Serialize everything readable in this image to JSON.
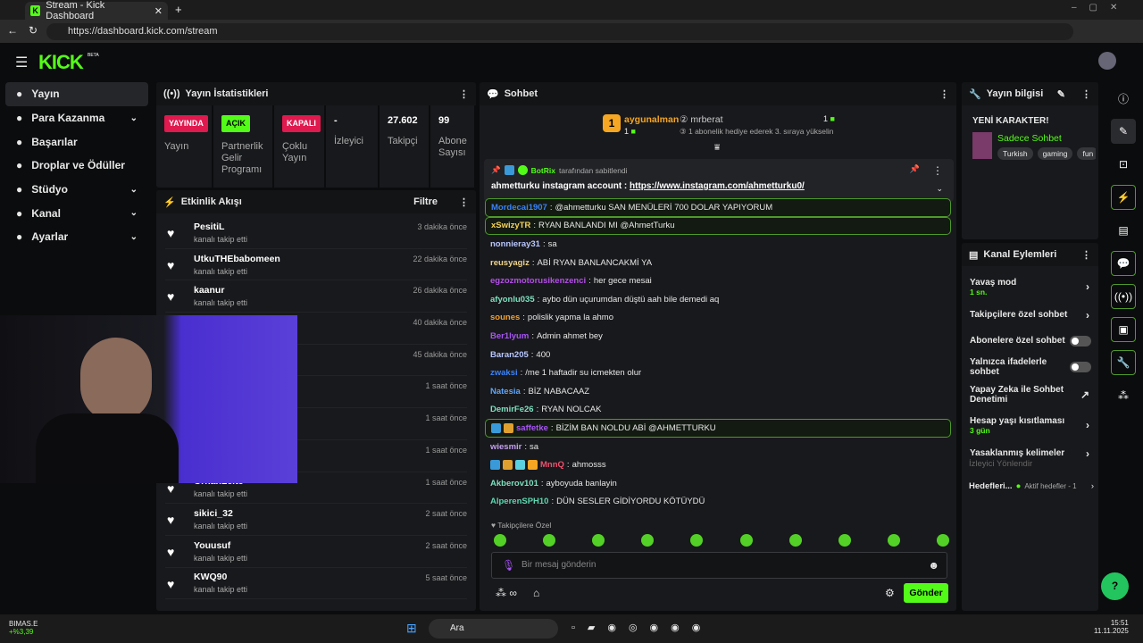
{
  "browser": {
    "tab_title": "Stream - Kick Dashboard",
    "url": "https://dashboard.kick.com/stream"
  },
  "brand": {
    "logo": "KICK",
    "beta": "BETA",
    "accent": "#53fc18"
  },
  "sidebar": {
    "items": [
      {
        "label": "Yayın",
        "icon": "broadcast-icon",
        "active": true
      },
      {
        "label": "Para Kazanma",
        "icon": "money-icon",
        "expandable": true
      },
      {
        "label": "Başarılar",
        "icon": "trophy-icon"
      },
      {
        "label": "Droplar ve Ödüller",
        "icon": "gift-icon"
      },
      {
        "label": "Stüdyo",
        "icon": "studio-icon",
        "expandable": true
      },
      {
        "label": "Kanal",
        "icon": "channel-icon",
        "expandable": true
      },
      {
        "label": "Ayarlar",
        "icon": "gear-icon",
        "expandable": true
      }
    ]
  },
  "stats": {
    "title": "Yayın İstatistikleri",
    "items": [
      {
        "badge": "YAYINDA",
        "badge_color": "#e0194e",
        "label": "Yayın"
      },
      {
        "badge": "AÇIK",
        "badge_color": "#53fc18",
        "label": "Partnerlik Gelir Programı"
      },
      {
        "badge": "KAPALI",
        "badge_color": "#e0194e",
        "label": "Çoklu Yayın"
      },
      {
        "value": "-",
        "label": "İzleyici"
      },
      {
        "value": "27.602",
        "label": "Takipçi"
      },
      {
        "value": "99",
        "label": "Abone Sayısı"
      }
    ]
  },
  "activity": {
    "title": "Etkinlik Akışı",
    "filter": "Filtre",
    "action": "kanalı takip etti",
    "events": [
      {
        "name": "PesitiL",
        "time": "3 dakika önce"
      },
      {
        "name": "UtkuTHEbabomeen",
        "time": "22 dakika önce"
      },
      {
        "name": "kaanur",
        "time": "26 dakika önce"
      },
      {
        "name": "",
        "time": "40 dakika önce"
      },
      {
        "name": "",
        "time": "45 dakika önce"
      },
      {
        "name": "",
        "time": "1 saat önce"
      },
      {
        "name": "",
        "time": "1 saat önce"
      },
      {
        "name": "",
        "time": "1 saat önce"
      },
      {
        "name": "OrhanLeite",
        "time": "1 saat önce"
      },
      {
        "name": "sikici_32",
        "time": "2 saat önce"
      },
      {
        "name": "Youusuf",
        "time": "2 saat önce"
      },
      {
        "name": "KWQ90",
        "time": "5 saat önce"
      }
    ]
  },
  "chat": {
    "title": "Sohbet",
    "leaderboard": {
      "first": "aygunalman",
      "first_count": "1",
      "second": "mrberat",
      "second_count": "1",
      "third_prompt": "1 abonelik hediye ederek 3. sıraya yükselin"
    },
    "pinned": {
      "by": "BotRix",
      "by_suffix": "tarafından sabitlendi",
      "text": "ahmetturku instagram account : ",
      "link": "https://www.instagram.com/ahmetturku0/"
    },
    "messages": [
      {
        "user": "Mordecai1907",
        "color": "#3b82f6",
        "text": "@ahmetturku SAN MENÜLERİ 700 DOLAR YAPIYORUM",
        "highlight": true
      },
      {
        "user": "xSwizyTR",
        "color": "#f4d35e",
        "text": "RYAN BANLANDI MI @AhmetTurku",
        "highlight": true
      },
      {
        "user": "nonnieray31",
        "color": "#b8c7ff",
        "text": "sa"
      },
      {
        "user": "reusyagiz",
        "color": "#f0d48a",
        "text": "ABİ RYAN BANLANCAKMİ YA"
      },
      {
        "user": "egzozmotorusikenzenci",
        "color": "#b44fe8",
        "text": "her gece mesai"
      },
      {
        "user": "afyonlu035",
        "color": "#7ee0c0",
        "text": "aybo dün uçurumdan düştü aah bile demedi aq"
      },
      {
        "user": "sounes",
        "color": "#f0a030",
        "text": "polislik yapma la ahmo"
      },
      {
        "user": "Ber1lyum",
        "color": "#a855f7",
        "text": "Admin ahmet bey"
      },
      {
        "user": "Baran205",
        "color": "#b8c7ff",
        "text": "400"
      },
      {
        "user": "zwaksi",
        "color": "#3b82f6",
        "text": "/me 1 haftadir su icmekten olur"
      },
      {
        "user": "Natesia",
        "color": "#60a5fa",
        "text": "BİZ NABACAAZ"
      },
      {
        "user": "DemirFe26",
        "color": "#7ee0c0",
        "text": "RYAN NOLCAK"
      },
      {
        "user": "saffetke",
        "color": "#a855f7",
        "text": "BİZİM BAN NOLDU ABİ @AHMETTURKU",
        "highlight": true,
        "badges": 2
      },
      {
        "user": "wiesmir",
        "color": "#c4a0f0",
        "text": "sa"
      },
      {
        "user": "MnnQ",
        "color": "#f0506e",
        "text": "ahmosss",
        "badges": 4
      },
      {
        "user": "Akberov101",
        "color": "#7ee0c0",
        "text": "ayboyuda banlayin"
      },
      {
        "user": "AlperenSPH10",
        "color": "#5ed6b0",
        "text": "DÜN SESLER GİDİYORDU KÖTÜYDÜ"
      }
    ],
    "emote_section": "Takipçilere Özel",
    "input_placeholder": "Bir mesaj gönderin",
    "send": "Gönder"
  },
  "stream_info": {
    "title_label": "Yayın bilgisi",
    "stream_title": "YENİ KARAKTER!",
    "category": "Sadece Sohbet",
    "tags": [
      "Turkish",
      "gaming",
      "fun"
    ]
  },
  "channel_actions": {
    "title": "Kanal Eylemleri",
    "items": [
      {
        "label": "Yavaş mod",
        "sub": "1 sn.",
        "control": "chevron"
      },
      {
        "label": "Takipçilere özel sohbet",
        "control": "chevron"
      },
      {
        "label": "Abonelere özel sohbet",
        "control": "toggle",
        "on": false
      },
      {
        "label": "Yalnızca ifadelerle sohbet",
        "control": "toggle",
        "on": false
      },
      {
        "label": "Yapay Zeka ile Sohbet Denetimi",
        "control": "external"
      },
      {
        "label": "Hesap yaşı kısıtlaması",
        "sub": "3 gün",
        "control": "chevron"
      },
      {
        "label": "Yasaklanmış kelimeler",
        "control": "chevron"
      }
    ],
    "section": "İzleyici Yönlendir",
    "goals_label": "Hedefleri...",
    "goals_status": "Aktif hedefler - 1"
  },
  "taskbar": {
    "stock_name": "BIMAS.E",
    "stock_change": "+%3,39",
    "search": "Ara",
    "time": "15:51",
    "date": "11.11.2025"
  }
}
